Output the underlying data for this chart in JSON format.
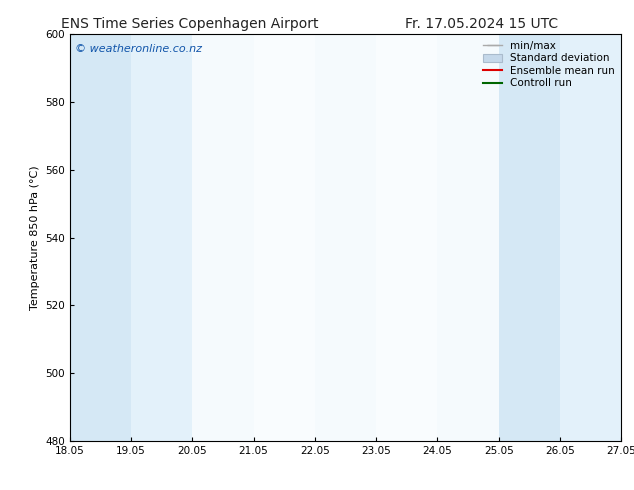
{
  "title_left": "ENS Time Series Copenhagen Airport",
  "title_right": "Fr. 17.05.2024 15 UTC",
  "ylabel": "Temperature 850 hPa (°C)",
  "watermark": "© weatheronline.co.nz",
  "xlim_start": 18.05,
  "xlim_end": 27.05,
  "ylim_bottom": 480,
  "ylim_top": 600,
  "yticks": [
    480,
    500,
    520,
    540,
    560,
    580,
    600
  ],
  "xticks": [
    18.05,
    19.05,
    20.05,
    21.05,
    22.05,
    23.05,
    24.05,
    25.05,
    26.05,
    27.05
  ],
  "xtick_labels": [
    "18.05",
    "19.05",
    "20.05",
    "21.05",
    "22.05",
    "23.05",
    "24.05",
    "25.05",
    "26.05",
    "27.05"
  ],
  "shaded_bands": [
    {
      "x_start": 18.05,
      "x_end": 19.05,
      "color": "#d5e8f5"
    },
    {
      "x_start": 19.05,
      "x_end": 20.05,
      "color": "#e3f1fa"
    },
    {
      "x_start": 20.05,
      "x_end": 21.05,
      "color": "#f5fafd"
    },
    {
      "x_start": 21.05,
      "x_end": 22.05,
      "color": "#f9fcfe"
    },
    {
      "x_start": 22.05,
      "x_end": 23.05,
      "color": "#f5fafd"
    },
    {
      "x_start": 23.05,
      "x_end": 24.05,
      "color": "#f9fcfe"
    },
    {
      "x_start": 24.05,
      "x_end": 25.05,
      "color": "#f5fafd"
    },
    {
      "x_start": 25.05,
      "x_end": 26.05,
      "color": "#d5e8f5"
    },
    {
      "x_start": 26.05,
      "x_end": 27.05,
      "color": "#e3f1fa"
    }
  ],
  "legend_entries": [
    {
      "label": "min/max",
      "color": "#aaaaaa",
      "style": "errorbar"
    },
    {
      "label": "Standard deviation",
      "color": "#c0d0e0",
      "style": "band"
    },
    {
      "label": "Ensemble mean run",
      "color": "#ff0000",
      "style": "line"
    },
    {
      "label": "Controll run",
      "color": "#006600",
      "style": "line"
    }
  ],
  "background_color": "#ffffff",
  "spine_color": "#000000",
  "tick_color": "#000000",
  "title_fontsize": 10,
  "axis_label_fontsize": 8,
  "tick_fontsize": 7.5,
  "legend_fontsize": 7.5,
  "watermark_color": "#1155aa",
  "watermark_fontsize": 8
}
